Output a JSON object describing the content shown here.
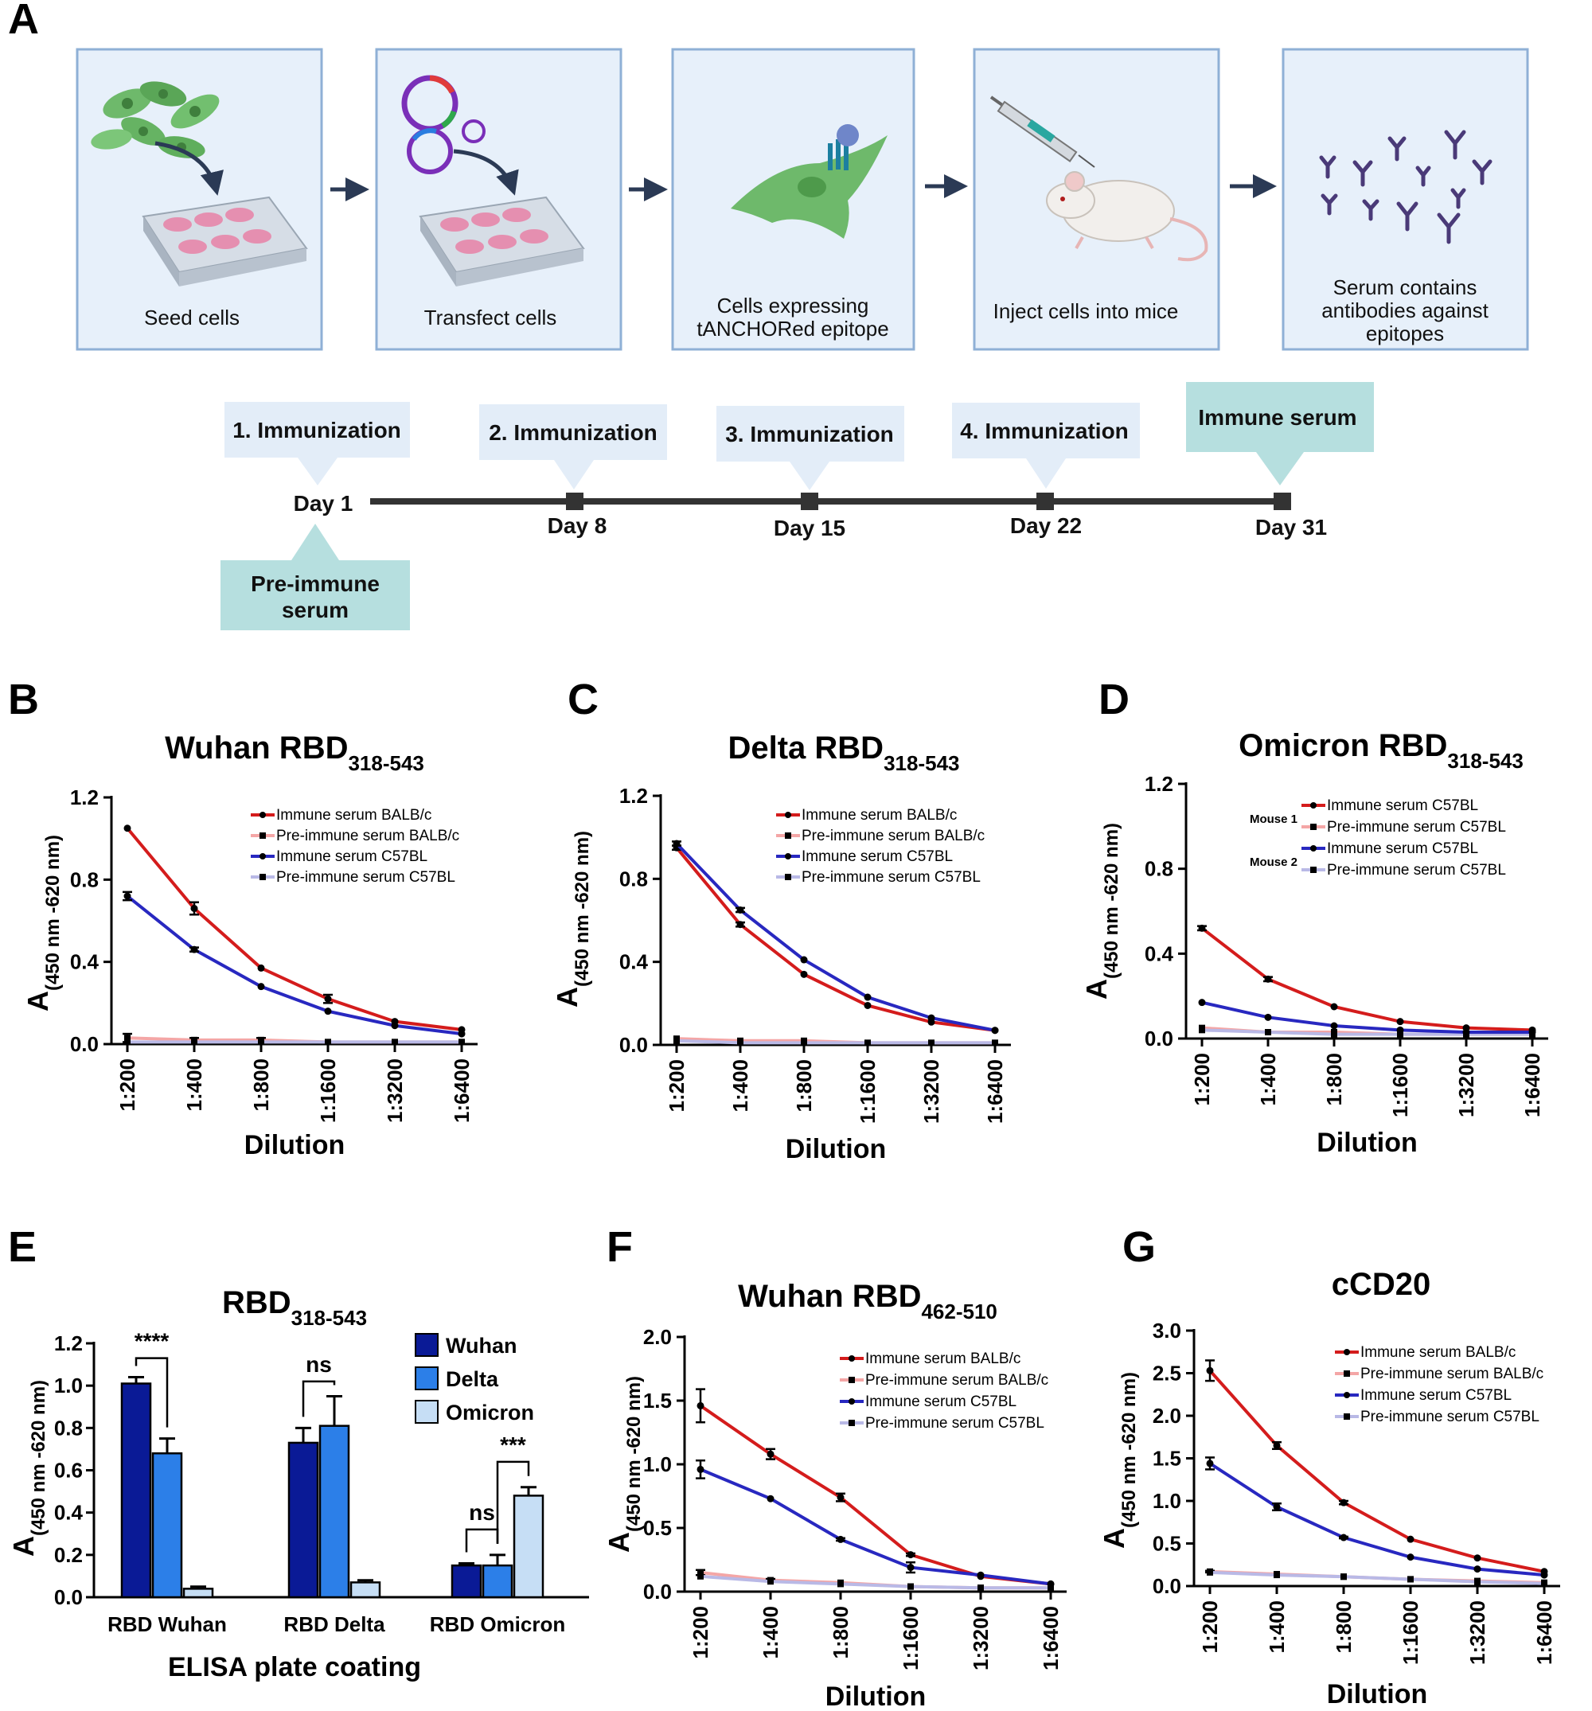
{
  "panel_letters": {
    "A": "A",
    "B": "B",
    "C": "C",
    "D": "D",
    "E": "E",
    "F": "F",
    "G": "G"
  },
  "workflow": {
    "steps": [
      {
        "lines": [
          "Seed cells"
        ]
      },
      {
        "lines": [
          "Transfect cells"
        ]
      },
      {
        "lines": [
          "Cells expressing",
          "tANCHORed epitope"
        ]
      },
      {
        "lines": [
          "Inject cells into mice"
        ]
      },
      {
        "lines": [
          "Serum contains",
          "antibodies against",
          "epitopes"
        ]
      }
    ],
    "timeline": {
      "immunizations": [
        "1. Immunization",
        "2. Immunization",
        "3. Immunization",
        "4. Immunization"
      ],
      "immune_serum": "Immune serum",
      "pre_immune": [
        "Pre-immune",
        "serum"
      ],
      "days": [
        "Day 1",
        "Day 8",
        "Day 15",
        "Day 22",
        "Day 31"
      ]
    }
  },
  "colors": {
    "box_fill": "#e7f0fa",
    "box_stroke": "#8fb0d6",
    "arrow": "#2b3a55",
    "callout": "#e3edf8",
    "teal": "#b6dfdf",
    "timeline": "#333333",
    "red": "#d41c1c",
    "blue": "#2828c0",
    "pink": "#f4a6a6",
    "lavender": "#b9b9e6",
    "wuhan_bar": "#0a1a96",
    "delta_bar": "#2c7fe8",
    "omicron_bar": "#c6def5",
    "cell_green": "#6eb96b",
    "plate_pink": "#e58fb0",
    "antibody": "#4a3a78"
  },
  "chart_data": [
    {
      "id": "B",
      "type": "line",
      "title_main": "Wuhan RBD",
      "title_sub": "318-543",
      "xlabel": "Dilution",
      "ylabel_main": "A",
      "ylabel_sub": "(450 nm -620 nm)",
      "categories": [
        "1:200",
        "1:400",
        "1:800",
        "1:1600",
        "1:3200",
        "1:6400"
      ],
      "ylim": [
        0,
        1.2
      ],
      "yticks": [
        "0.0",
        "0.4",
        "0.8",
        "1.2"
      ],
      "ytick_values": [
        0,
        0.4,
        0.8,
        1.2
      ],
      "series": [
        {
          "name": "Immune serum BALB/c",
          "color": "#d41c1c",
          "values": [
            1.05,
            0.66,
            0.37,
            0.22,
            0.11,
            0.07
          ],
          "err": [
            0,
            0.03,
            0,
            0.02,
            0,
            0
          ]
        },
        {
          "name": "Pre-immune serum BALB/c",
          "color": "#f4a6a6",
          "values": [
            0.03,
            0.02,
            0.02,
            0.01,
            0.01,
            0.01
          ],
          "err": [
            0.02,
            0.01,
            0.01,
            0,
            0,
            0
          ]
        },
        {
          "name": "Immune serum C57BL",
          "color": "#2828c0",
          "values": [
            0.72,
            0.46,
            0.28,
            0.16,
            0.09,
            0.05
          ],
          "err": [
            0.02,
            0.01,
            0,
            0,
            0,
            0
          ]
        },
        {
          "name": "Pre-immune serum C57BL",
          "color": "#b9b9e6",
          "values": [
            0.01,
            0.01,
            0.01,
            0.01,
            0.01,
            0.01
          ],
          "err": [
            0,
            0,
            0,
            0,
            0,
            0
          ]
        }
      ]
    },
    {
      "id": "C",
      "type": "line",
      "title_main": "Delta RBD",
      "title_sub": "318-543",
      "xlabel": "Dilution",
      "ylabel_main": "A",
      "ylabel_sub": "(450 nm -620 nm)",
      "categories": [
        "1:200",
        "1:400",
        "1:800",
        "1:1600",
        "1:3200",
        "1:6400"
      ],
      "ylim": [
        0,
        1.2
      ],
      "yticks": [
        "0.0",
        "0.4",
        "0.8",
        "1.2"
      ],
      "ytick_values": [
        0,
        0.4,
        0.8,
        1.2
      ],
      "series": [
        {
          "name": "Immune serum BALB/c",
          "color": "#d41c1c",
          "values": [
            0.95,
            0.58,
            0.34,
            0.19,
            0.11,
            0.07
          ],
          "err": [
            0.01,
            0.01,
            0,
            0,
            0,
            0
          ]
        },
        {
          "name": "Pre-immune serum BALB/c",
          "color": "#f4a6a6",
          "values": [
            0.03,
            0.02,
            0.02,
            0.01,
            0.01,
            0.01
          ],
          "err": [
            0,
            0,
            0,
            0,
            0,
            0
          ]
        },
        {
          "name": "Immune serum C57BL",
          "color": "#2828c0",
          "values": [
            0.97,
            0.65,
            0.41,
            0.23,
            0.13,
            0.07
          ],
          "err": [
            0.01,
            0.01,
            0,
            0,
            0,
            0
          ]
        },
        {
          "name": "Pre-immune serum C57BL",
          "color": "#b9b9e6",
          "values": [
            0.02,
            0.01,
            0.01,
            0.01,
            0.01,
            0.01
          ],
          "err": [
            0,
            0,
            0,
            0,
            0,
            0
          ]
        }
      ]
    },
    {
      "id": "D",
      "type": "line",
      "title_main": "Omicron RBD",
      "title_sub": "318-543",
      "xlabel": "Dilution",
      "ylabel_main": "A",
      "ylabel_sub": "(450 nm -620 nm)",
      "categories": [
        "1:200",
        "1:400",
        "1:800",
        "1:1600",
        "1:3200",
        "1:6400"
      ],
      "ylim": [
        0,
        1.2
      ],
      "yticks": [
        "0.0",
        "0.4",
        "0.8",
        "1.2"
      ],
      "ytick_values": [
        0,
        0.4,
        0.8,
        1.2
      ],
      "legend_groups": [
        "Mouse 1",
        "Mouse 2"
      ],
      "series": [
        {
          "name": "Immune serum C57BL",
          "color": "#d41c1c",
          "values": [
            0.52,
            0.28,
            0.15,
            0.08,
            0.05,
            0.04
          ],
          "err": [
            0.01,
            0.01,
            0,
            0,
            0,
            0
          ]
        },
        {
          "name": "Pre-immune serum C57BL",
          "color": "#f4a6a6",
          "values": [
            0.05,
            0.03,
            0.03,
            0.02,
            0.02,
            0.02
          ],
          "err": [
            0,
            0,
            0,
            0,
            0,
            0
          ]
        },
        {
          "name": "Immune serum C57BL",
          "color": "#2828c0",
          "values": [
            0.17,
            0.1,
            0.06,
            0.04,
            0.03,
            0.03
          ],
          "err": [
            0,
            0,
            0,
            0,
            0,
            0
          ]
        },
        {
          "name": "Pre-immune serum C57BL",
          "color": "#b9b9e6",
          "values": [
            0.04,
            0.03,
            0.02,
            0.02,
            0.02,
            0.02
          ],
          "err": [
            0,
            0,
            0,
            0,
            0,
            0
          ]
        }
      ]
    },
    {
      "id": "E",
      "type": "bar",
      "title_main": "RBD",
      "title_sub": "318-543",
      "xlabel": "ELISA plate coating",
      "ylabel_main": "A",
      "ylabel_sub": "(450 nm -620 nm)",
      "categories": [
        "RBD Wuhan",
        "RBD Delta",
        "RBD Omicron"
      ],
      "ylim": [
        0,
        1.2
      ],
      "yticks": [
        "0.0",
        "0.2",
        "0.4",
        "0.6",
        "0.8",
        "1.0",
        "1.2"
      ],
      "ytick_values": [
        0,
        0.2,
        0.4,
        0.6,
        0.8,
        1.0,
        1.2
      ],
      "series": [
        {
          "name": "Wuhan",
          "color": "#0a1a96",
          "values": [
            1.01,
            0.73,
            0.15
          ],
          "err": [
            0.03,
            0.07,
            0.01
          ]
        },
        {
          "name": "Delta",
          "color": "#2c7fe8",
          "values": [
            0.68,
            0.81,
            0.15
          ],
          "err": [
            0.07,
            0.14,
            0.05
          ]
        },
        {
          "name": "Omicron",
          "color": "#c6def5",
          "values": [
            0.04,
            0.07,
            0.48
          ],
          "err": [
            0.01,
            0.01,
            0.04
          ]
        }
      ],
      "annotations": [
        {
          "label": "****",
          "group": 0,
          "from_series": 0,
          "to_series": 1,
          "level": 1.13
        },
        {
          "label": "ns",
          "group": 1,
          "from_series": 0,
          "to_series": 1,
          "level": 1.02
        },
        {
          "label": "ns",
          "group": 2,
          "from_series": 0,
          "to_series": 1,
          "level": 0.32
        },
        {
          "label": "***",
          "group": 2,
          "from_series": 1,
          "to_series": 2,
          "level": 0.64
        }
      ]
    },
    {
      "id": "F",
      "type": "line",
      "title_main": "Wuhan RBD",
      "title_sub": "462-510",
      "xlabel": "Dilution",
      "ylabel_main": "A",
      "ylabel_sub": "(450 nm -620 nm)",
      "categories": [
        "1:200",
        "1:400",
        "1:800",
        "1:1600",
        "1:3200",
        "1:6400"
      ],
      "ylim": [
        0,
        2.0
      ],
      "yticks": [
        "0.0",
        "0.5",
        "1.0",
        "1.5",
        "2.0"
      ],
      "ytick_values": [
        0,
        0.5,
        1.0,
        1.5,
        2.0
      ],
      "series": [
        {
          "name": "Immune serum BALB/c",
          "color": "#d41c1c",
          "values": [
            1.46,
            1.08,
            0.74,
            0.29,
            0.12,
            0.06
          ],
          "err": [
            0.13,
            0.04,
            0.03,
            0.01,
            0,
            0
          ]
        },
        {
          "name": "Pre-immune serum BALB/c",
          "color": "#f4a6a6",
          "values": [
            0.15,
            0.09,
            0.07,
            0.04,
            0.03,
            0.03
          ],
          "err": [
            0.02,
            0.01,
            0,
            0,
            0,
            0
          ]
        },
        {
          "name": "Immune serum C57BL",
          "color": "#2828c0",
          "values": [
            0.96,
            0.73,
            0.41,
            0.19,
            0.13,
            0.06
          ],
          "err": [
            0.07,
            0,
            0.01,
            0.04,
            0,
            0
          ]
        },
        {
          "name": "Pre-immune serum C57BL",
          "color": "#b9b9e6",
          "values": [
            0.12,
            0.08,
            0.06,
            0.04,
            0.03,
            0.03
          ],
          "err": [
            0,
            0,
            0,
            0,
            0,
            0
          ]
        }
      ]
    },
    {
      "id": "G",
      "type": "line",
      "title_main": "cCD20",
      "title_sub": "",
      "xlabel": "Dilution",
      "ylabel_main": "A",
      "ylabel_sub": "(450 nm -620 nm)",
      "categories": [
        "1:200",
        "1:400",
        "1:800",
        "1:1600",
        "1:3200",
        "1:6400"
      ],
      "ylim": [
        0,
        3.0
      ],
      "yticks": [
        "0.0",
        "0.5",
        "1.0",
        "1.5",
        "2.0",
        "2.5",
        "3.0"
      ],
      "ytick_values": [
        0,
        0.5,
        1.0,
        1.5,
        2.0,
        2.5,
        3.0
      ],
      "series": [
        {
          "name": "Immune serum BALB/c",
          "color": "#d41c1c",
          "values": [
            2.53,
            1.65,
            0.98,
            0.55,
            0.33,
            0.17
          ],
          "err": [
            0.12,
            0.04,
            0.02,
            0,
            0,
            0
          ]
        },
        {
          "name": "Pre-immune serum BALB/c",
          "color": "#f4a6a6",
          "values": [
            0.17,
            0.14,
            0.11,
            0.08,
            0.06,
            0.04
          ],
          "err": [
            0.01,
            0,
            0,
            0,
            0,
            0
          ]
        },
        {
          "name": "Immune serum C57BL",
          "color": "#2828c0",
          "values": [
            1.44,
            0.93,
            0.57,
            0.34,
            0.2,
            0.13
          ],
          "err": [
            0.07,
            0.04,
            0.01,
            0,
            0,
            0
          ]
        },
        {
          "name": "Pre-immune serum C57BL",
          "color": "#b9b9e6",
          "values": [
            0.16,
            0.13,
            0.11,
            0.08,
            0.05,
            0.03
          ],
          "err": [
            0,
            0,
            0,
            0,
            0,
            0
          ]
        }
      ]
    }
  ]
}
